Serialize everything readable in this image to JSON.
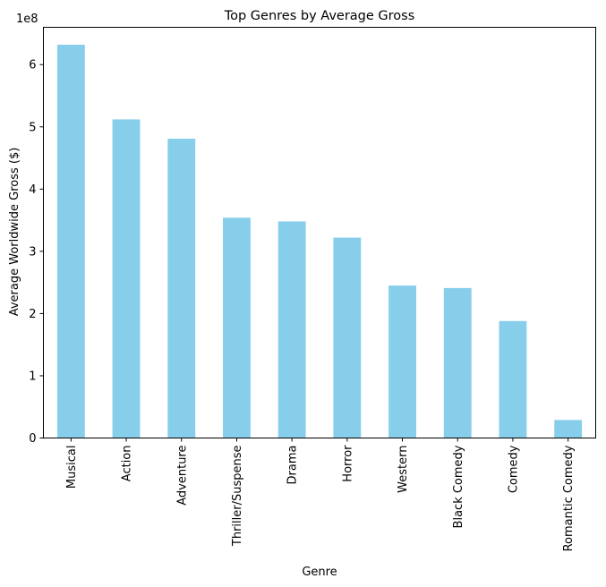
{
  "chart_data": {
    "type": "bar",
    "title": "Top Genres by Average Gross",
    "xlabel": "Genre",
    "ylabel": "Average Worldwide Gross ($)",
    "y_offset_label": "1e8",
    "categories": [
      "Musical",
      "Action",
      "Adventure",
      "Thriller/Suspense",
      "Drama",
      "Horror",
      "Western",
      "Black Comedy",
      "Comedy",
      "Romantic Comedy"
    ],
    "values": [
      632000000,
      512000000,
      481000000,
      354000000,
      348000000,
      322000000,
      245000000,
      241000000,
      188000000,
      29000000
    ],
    "ylim": [
      0,
      660000000
    ],
    "y_ticks": [
      0,
      100000000,
      200000000,
      300000000,
      400000000,
      500000000,
      600000000
    ],
    "y_tick_labels": [
      "0",
      "1",
      "2",
      "3",
      "4",
      "5",
      "6"
    ],
    "bar_color": "#87ceeb",
    "grid": false,
    "legend": "none"
  }
}
